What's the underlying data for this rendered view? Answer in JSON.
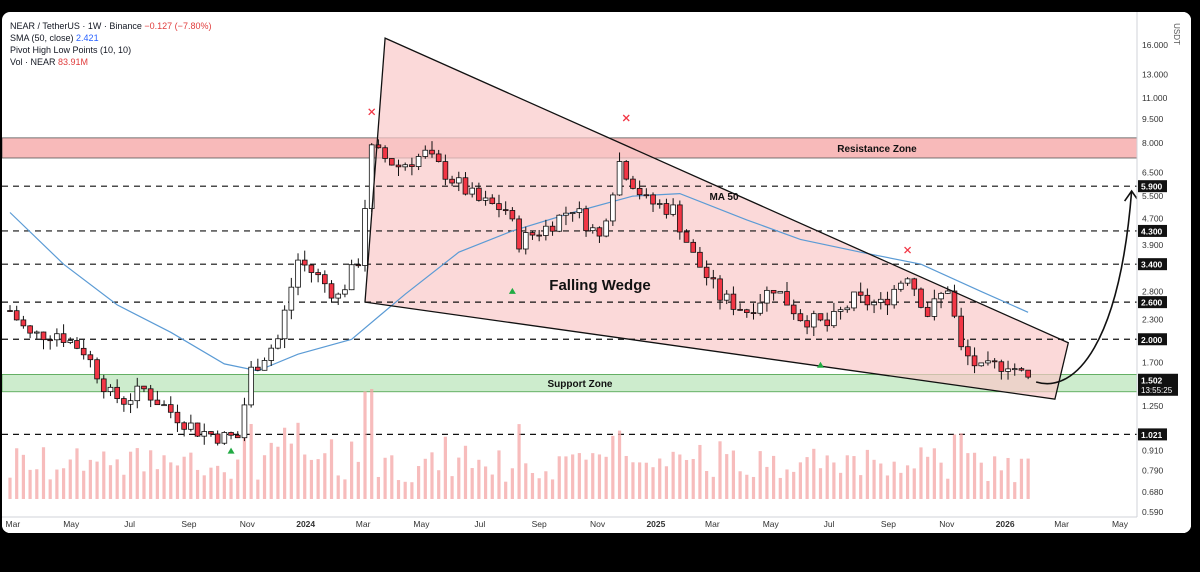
{
  "legend": {
    "symbol": "NEAR / TetherUS · 1W · Binance",
    "change": "−0.127 (−7.80%)",
    "sma_label": "SMA (50, close)",
    "sma_value": "2.421",
    "pivot_label": "Pivot High Low Points (10, 10)",
    "vol_label": "Vol · NEAR",
    "vol_value": "83.91M"
  },
  "colors": {
    "up": "#089981",
    "down": "#f23645",
    "candle_up": "#ffffff",
    "candle_down": "#f23645",
    "wedge_fill": "#f9c9c9",
    "resistance_fill": "#f5a3a3",
    "support_fill": "#cdeccd",
    "sma": "#5b9bd5",
    "volume": "#f4a6a6"
  },
  "chart_data": {
    "type": "candlestick",
    "symbol": "NEAR / TetherUS",
    "interval": "1W",
    "exchange": "Binance",
    "y_scale": "log",
    "ylim": [
      0.56,
      21
    ],
    "y_ticks": [
      16.0,
      13.0,
      11.0,
      9.5,
      8.0,
      6.5,
      5.5,
      4.7,
      3.9,
      2.8,
      2.3,
      1.7,
      1.25,
      0.91,
      0.79,
      0.68,
      0.59
    ],
    "y_tick_labels": [
      "16.000",
      "13.000",
      "11.000",
      "9.500",
      "8.000",
      "6.500",
      "5.500",
      "4.700",
      "3.900",
      "2.800",
      "2.300",
      "1.700",
      "1.250",
      "0.910",
      "0.790",
      "0.680",
      "0.590"
    ],
    "axis_unit": "USDT",
    "x_ticks": [
      "Mar",
      "May",
      "Jul",
      "Sep",
      "Nov",
      "2024",
      "Mar",
      "May",
      "Jul",
      "Sep",
      "Nov",
      "2025",
      "Mar",
      "May",
      "Jul",
      "Sep",
      "Nov",
      "2026",
      "Mar",
      "May"
    ],
    "x_tick_dates": [
      "2023-03",
      "2023-05",
      "2023-07",
      "2023-09",
      "2023-11",
      "2024-01",
      "2024-03",
      "2024-05",
      "2024-07",
      "2024-09",
      "2024-11",
      "2025-01",
      "2025-03",
      "2025-05",
      "2025-07",
      "2025-09",
      "2025-11",
      "2026-01",
      "2026-03",
      "2026-05"
    ],
    "levels": [
      {
        "value": 5.9,
        "label": "5.900"
      },
      {
        "value": 4.3,
        "label": "4.300"
      },
      {
        "value": 3.4,
        "label": "3.400"
      },
      {
        "value": 2.6,
        "label": "2.600"
      },
      {
        "value": 2.0,
        "label": "2.000"
      },
      {
        "value": 1.021,
        "label": "1.021"
      }
    ],
    "current_price": {
      "value": 1.502,
      "label": "1.502",
      "countdown": "13:55:25"
    },
    "resistance_zone": {
      "label": "Resistance Zone",
      "low": 7.2,
      "high": 8.3
    },
    "support_zone": {
      "label": "Support Zone",
      "low": 1.38,
      "high": 1.56
    },
    "wedge": {
      "label": "Falling Wedge",
      "top_start": {
        "date": "2024-03-03",
        "price": 2.6
      },
      "apex": {
        "date": "2024-03-24",
        "price": 16.8
      },
      "top_end": {
        "date": "2026-03-08",
        "price": 1.95
      },
      "bottom_end": {
        "date": "2026-02-22",
        "price": 1.31
      }
    },
    "projection_target": {
      "date": "2026-03-01",
      "price": 5.7
    },
    "sma_label": "MA 50",
    "pivot_highs": [
      {
        "date": "2024-03-10",
        "price": 9.3
      },
      {
        "date": "2024-12-01",
        "price": 8.9
      },
      {
        "date": "2025-09-21",
        "price": 3.5
      }
    ],
    "pivot_lows": [
      {
        "date": "2023-10-15",
        "price": 0.97
      },
      {
        "date": "2024-08-04",
        "price": 3.0
      },
      {
        "date": "2025-06-22",
        "price": 1.78
      }
    ],
    "close_path": [
      [
        "2023-02-26",
        2.45
      ],
      [
        "2023-03-19",
        2.05
      ],
      [
        "2023-04-16",
        2.1
      ],
      [
        "2023-05-14",
        1.85
      ],
      [
        "2023-06-11",
        1.35
      ],
      [
        "2023-06-25",
        1.3
      ],
      [
        "2023-07-16",
        1.4
      ],
      [
        "2023-08-13",
        1.2
      ],
      [
        "2023-09-10",
        1.05
      ],
      [
        "2023-10-08",
        1.0
      ],
      [
        "2023-10-22",
        1.0
      ],
      [
        "2023-11-05",
        1.6
      ],
      [
        "2023-12-03",
        2.0
      ],
      [
        "2023-12-24",
        3.5
      ],
      [
        "2024-01-14",
        3.1
      ],
      [
        "2024-02-04",
        2.7
      ],
      [
        "2024-02-25",
        3.5
      ],
      [
        "2024-03-10",
        7.6
      ],
      [
        "2024-04-07",
        6.8
      ],
      [
        "2024-05-05",
        7.4
      ],
      [
        "2024-06-02",
        6.2
      ],
      [
        "2024-06-30",
        5.3
      ],
      [
        "2024-07-28",
        5.0
      ],
      [
        "2024-08-11",
        4.0
      ],
      [
        "2024-09-08",
        4.4
      ],
      [
        "2024-10-06",
        5.1
      ],
      [
        "2024-11-03",
        4.1
      ],
      [
        "2024-11-24",
        7.0
      ],
      [
        "2024-12-22",
        5.3
      ],
      [
        "2025-01-19",
        5.0
      ],
      [
        "2025-02-09",
        3.6
      ],
      [
        "2025-03-09",
        2.7
      ],
      [
        "2025-04-06",
        2.45
      ],
      [
        "2025-05-04",
        2.9
      ],
      [
        "2025-06-01",
        2.35
      ],
      [
        "2025-06-29",
        2.2
      ],
      [
        "2025-07-27",
        2.65
      ],
      [
        "2025-08-24",
        2.55
      ],
      [
        "2025-09-21",
        3.2
      ],
      [
        "2025-10-12",
        2.4
      ],
      [
        "2025-11-02",
        2.9
      ],
      [
        "2025-11-16",
        1.85
      ],
      [
        "2025-12-07",
        1.6
      ],
      [
        "2026-01-04",
        1.7
      ],
      [
        "2026-01-25",
        1.5
      ]
    ],
    "sma_path": [
      [
        "2023-02-26",
        4.9
      ],
      [
        "2023-04-23",
        3.4
      ],
      [
        "2023-06-18",
        2.55
      ],
      [
        "2023-08-13",
        2.1
      ],
      [
        "2023-10-08",
        1.68
      ],
      [
        "2023-11-12",
        1.6
      ],
      [
        "2023-12-24",
        1.8
      ],
      [
        "2024-02-18",
        2.0
      ],
      [
        "2024-04-14",
        2.75
      ],
      [
        "2024-06-09",
        3.7
      ],
      [
        "2024-08-04",
        4.3
      ],
      [
        "2024-10-06",
        4.9
      ],
      [
        "2024-12-08",
        5.5
      ],
      [
        "2025-01-26",
        5.6
      ],
      [
        "2025-04-06",
        4.65
      ],
      [
        "2025-06-01",
        4.05
      ],
      [
        "2025-08-03",
        3.7
      ],
      [
        "2025-10-05",
        3.4
      ],
      [
        "2025-12-07",
        2.8
      ],
      [
        "2026-01-25",
        2.42
      ]
    ]
  }
}
